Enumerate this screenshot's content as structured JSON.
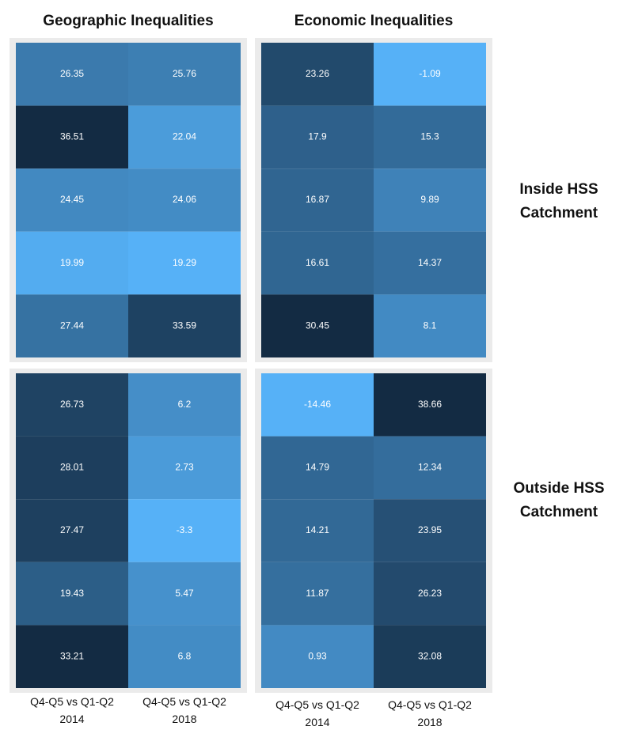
{
  "chart_data": {
    "type": "heatmap",
    "column_titles": [
      "Geographic Inequalities",
      "Economic Inequalities"
    ],
    "row_titles": [
      "Inside HSS Catchment",
      "Outside HSS Catchment"
    ],
    "x_categories": [
      "Q4-Q5 vs Q1-Q2 2014",
      "Q4-Q5 vs Q1-Q2 2018"
    ],
    "values": [
      [
        [
          [
            26.35,
            25.76
          ],
          [
            36.51,
            22.04
          ],
          [
            24.45,
            24.06
          ],
          [
            19.99,
            19.29
          ],
          [
            27.44,
            33.59
          ]
        ],
        [
          [
            23.26,
            -1.09
          ],
          [
            17.9,
            15.3
          ],
          [
            16.87,
            9.89
          ],
          [
            16.61,
            14.37
          ],
          [
            30.45,
            8.1
          ]
        ]
      ],
      [
        [
          [
            26.73,
            6.2
          ],
          [
            28.01,
            2.73
          ],
          [
            27.47,
            -3.3
          ],
          [
            19.43,
            5.47
          ],
          [
            33.21,
            6.8
          ]
        ],
        [
          [
            -14.46,
            38.66
          ],
          [
            14.79,
            12.34
          ],
          [
            14.21,
            23.95
          ],
          [
            11.87,
            26.23
          ],
          [
            0.93,
            32.08
          ]
        ]
      ]
    ],
    "colors": {
      "low": "#56b1f7",
      "high": "#132b43"
    }
  }
}
